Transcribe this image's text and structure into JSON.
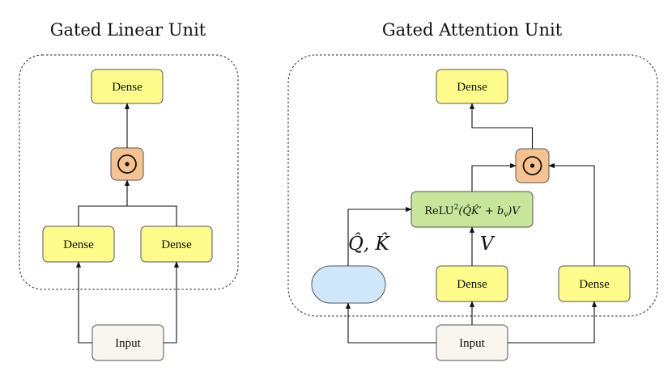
{
  "glu": {
    "title": "Gated Linear Unit",
    "output_dense": "Dense",
    "left_dense": "Dense",
    "right_dense": "Dense",
    "input": "Input"
  },
  "gau": {
    "title": "Gated Attention Unit",
    "output_dense": "Dense",
    "attention_label": {
      "prefix": "ReLU",
      "power": "2",
      "body": "(Q̂K̂′ + b",
      "sub": "v",
      "tail": ")V"
    },
    "qk_label": "Q̂,  K̂",
    "v_label": "V",
    "middle_dense": "Dense",
    "right_dense": "Dense",
    "input": "Input"
  },
  "colors": {
    "dense": "#fdfb8a",
    "gate": "#f6c390",
    "attention": "#c7e69a",
    "shared": "#cfe6fb",
    "input": "#f8f6ee"
  },
  "icons": {
    "gate": "circled-dot-icon"
  }
}
